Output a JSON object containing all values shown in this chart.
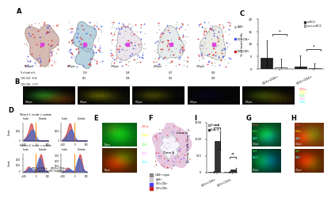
{
  "panel_A": {
    "scale_bars": [
      "500μm",
      "300μm",
      "300μm",
      "300μm",
      "300μm"
    ],
    "pct_labels": [
      {
        "cd4": "8.34",
        "cd8": "17.57"
      },
      {
        "cd4": "1.58",
        "cd8": "0.61"
      },
      {
        "cd4": "0.28",
        "cd8": "0.08"
      },
      {
        "cd4": "0.27",
        "cd8": "0.02"
      },
      {
        "cd4": "0.64",
        "cd8": "0.09"
      }
    ],
    "legend": [
      "CAIX+",
      "CD3=CD4+",
      "CD3=CD8+"
    ],
    "legend_colors": [
      "#bbbbbb",
      "#4455ee",
      "#cc2222"
    ]
  },
  "panel_C": {
    "ylabel": "% of total cells",
    "legend": [
      "ccRCC",
      "non-ccRCC"
    ],
    "bar_data": {
      "ccRCC": {
        "cd8": 4.5,
        "cd4": 1.0
      },
      "non_ccRCC": {
        "cd8": 0.6,
        "cd4": 0.4
      }
    },
    "error_bars": {
      "ccRCC": {
        "cd8": 7.0,
        "cd4": 4.5
      },
      "non_ccRCC": {
        "cd8": 3.5,
        "cd4": 2.0
      }
    },
    "ylim": [
      0,
      20
    ],
    "yticks": [
      0,
      5,
      10,
      15,
      20
    ]
  },
  "panel_D": {
    "pattern1_label": "Pattern 1: inside > outside",
    "pattern2_label": "Pattern 2: inside < outside",
    "cd8_color": "#cc3333",
    "cd4_color": "#3366cc",
    "inside_label": "Inside",
    "outside_label": "Outside",
    "xlabel": "Distance to the interface",
    "ylabel": "Count"
  },
  "panel_E": {
    "legend": [
      "CD3e",
      "CD8a",
      "CD4",
      "Ki67",
      "CAIX"
    ],
    "legend_colors": [
      "#ff4444",
      "#ffff00",
      "#44ff44",
      "#ff88ff",
      "#44ffff"
    ]
  },
  "panel_F": {
    "legend": [
      "CAIX+ region",
      "CAIX+",
      "CD3=CD4+",
      "CD3=CD8+"
    ],
    "legend_colors": [
      "#888888",
      "#cccccc",
      "#4444ff",
      "#cc2222"
    ],
    "zone_a": "Zone A",
    "zone_b": "Zone B"
  },
  "panel_I": {
    "ylabel": "Density (Cells / mm²)",
    "legend": [
      "Zone A",
      "Zone B"
    ],
    "bar_data": {
      "zone_a": {
        "cd8": 18,
        "cd4": 12
      },
      "zone_b": {
        "cd8": 950,
        "cd4": 75
      }
    },
    "error_bars": {
      "zone_a": {
        "cd8": 25,
        "cd4": 20
      },
      "zone_b": {
        "cd8": 280,
        "cd4": 55
      }
    },
    "ylim": [
      0,
      1500
    ],
    "yticks": [
      0,
      500,
      1000,
      1500
    ]
  },
  "panel_G": {
    "labels_left": [
      "CD3e",
      "CD4",
      "CAIX"
    ],
    "labels_right": [
      "CD4",
      "CA1X"
    ],
    "scale": "100μm"
  },
  "panel_H": {
    "labels_left": [
      "CD3e",
      "CD8a",
      "CAIX"
    ],
    "labels_right": [
      "CD4",
      "CAIX"
    ],
    "scale": "400μm"
  },
  "bg_color": "#ffffff",
  "panel_label_size": 6
}
